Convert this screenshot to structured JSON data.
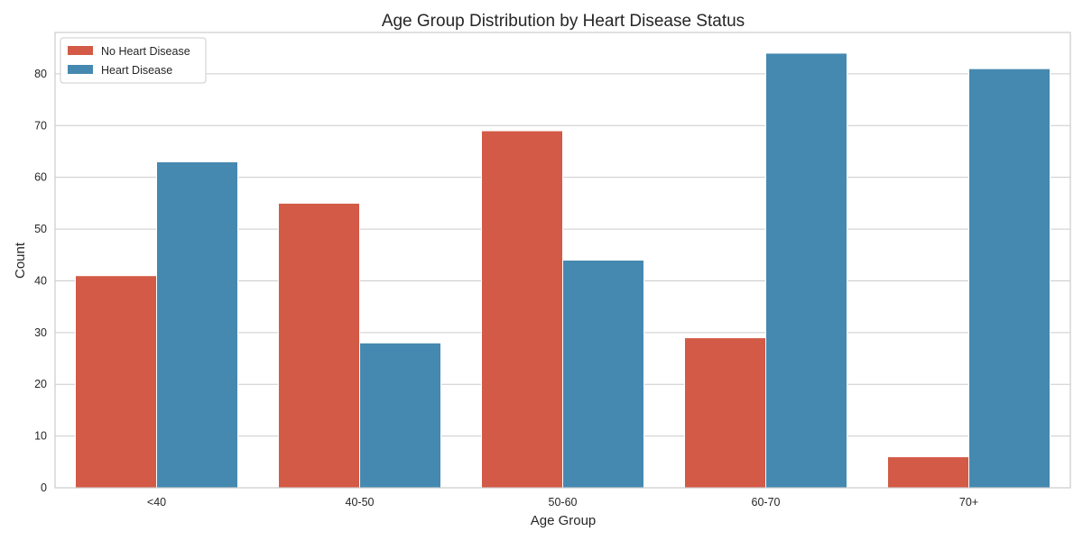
{
  "chart_data": {
    "type": "bar",
    "title": "Age Group Distribution by Heart Disease Status",
    "xlabel": "Age Group",
    "ylabel": "Count",
    "categories": [
      "<40",
      "40-50",
      "50-60",
      "60-70",
      "70+"
    ],
    "series": [
      {
        "name": "No Heart Disease",
        "color": "#d35a46",
        "values": [
          41,
          55,
          69,
          29,
          6
        ]
      },
      {
        "name": "Heart Disease",
        "color": "#4589b0",
        "values": [
          63,
          28,
          44,
          84,
          81
        ]
      }
    ],
    "ylim": [
      0,
      88
    ],
    "yticks": [
      0,
      10,
      20,
      30,
      40,
      50,
      60,
      70,
      80
    ],
    "grid": "horizontal",
    "legend_position": "top-left"
  }
}
